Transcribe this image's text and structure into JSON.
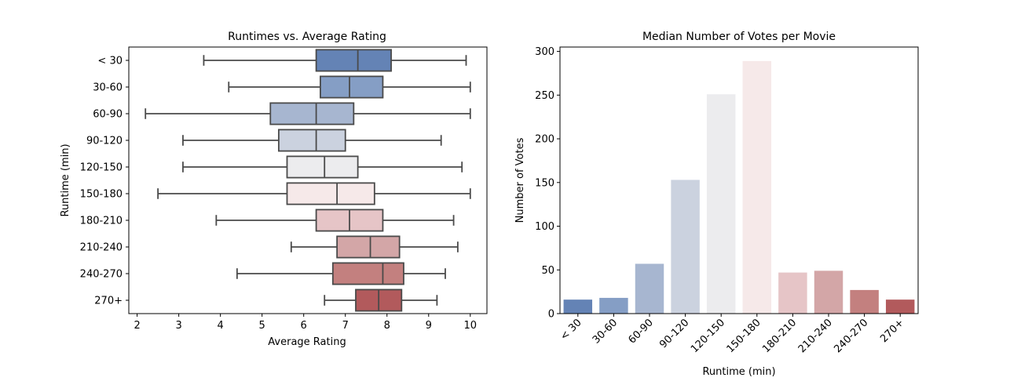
{
  "colors": {
    "box_edge": "#4a4a4a",
    "palette": [
      "#6483b5",
      "#859ec5",
      "#a7b6d0",
      "#cbd2df",
      "#ececee",
      "#f6e9e9",
      "#e6c5c7",
      "#d3a6a7",
      "#c3807f",
      "#b25a5c"
    ]
  },
  "chart_data": [
    {
      "type": "box",
      "orientation": "horizontal",
      "title": "Runtimes vs. Average Rating",
      "xlabel": "Average Rating",
      "ylabel": "Runtime (min)",
      "xlim": [
        1.8,
        10.4
      ],
      "xticks": [
        2,
        3,
        4,
        5,
        6,
        7,
        8,
        9,
        10
      ],
      "categories": [
        "< 30",
        "30-60",
        "60-90",
        "90-120",
        "120-150",
        "150-180",
        "180-210",
        "210-240",
        "240-270",
        "270+"
      ],
      "boxes": [
        {
          "whislo": 3.6,
          "q1": 6.3,
          "med": 7.3,
          "q3": 8.1,
          "whishi": 9.9
        },
        {
          "whislo": 4.2,
          "q1": 6.4,
          "med": 7.1,
          "q3": 7.9,
          "whishi": 10.0
        },
        {
          "whislo": 2.2,
          "q1": 5.2,
          "med": 6.3,
          "q3": 7.2,
          "whishi": 10.0
        },
        {
          "whislo": 3.1,
          "q1": 5.4,
          "med": 6.3,
          "q3": 7.0,
          "whishi": 9.3
        },
        {
          "whislo": 3.1,
          "q1": 5.6,
          "med": 6.5,
          "q3": 7.3,
          "whishi": 9.8
        },
        {
          "whislo": 2.5,
          "q1": 5.6,
          "med": 6.8,
          "q3": 7.7,
          "whishi": 10.0
        },
        {
          "whislo": 3.9,
          "q1": 6.3,
          "med": 7.1,
          "q3": 7.9,
          "whishi": 9.6
        },
        {
          "whislo": 5.7,
          "q1": 6.8,
          "med": 7.6,
          "q3": 8.3,
          "whishi": 9.7
        },
        {
          "whislo": 4.4,
          "q1": 6.7,
          "med": 7.9,
          "q3": 8.4,
          "whishi": 9.4
        },
        {
          "whislo": 6.5,
          "q1": 7.25,
          "med": 7.8,
          "q3": 8.35,
          "whishi": 9.2
        }
      ]
    },
    {
      "type": "bar",
      "title": "Median Number of Votes per Movie",
      "xlabel": "Runtime (min)",
      "ylabel": "Number of Votes",
      "ylim": [
        0,
        305
      ],
      "yticks": [
        0,
        50,
        100,
        150,
        200,
        250,
        300
      ],
      "categories": [
        "< 30",
        "30-60",
        "60-90",
        "90-120",
        "120-150",
        "150-180",
        "180-210",
        "210-240",
        "240-270",
        "270+"
      ],
      "values": [
        16,
        18,
        57,
        153,
        251,
        289,
        47,
        49,
        27,
        16
      ]
    }
  ]
}
